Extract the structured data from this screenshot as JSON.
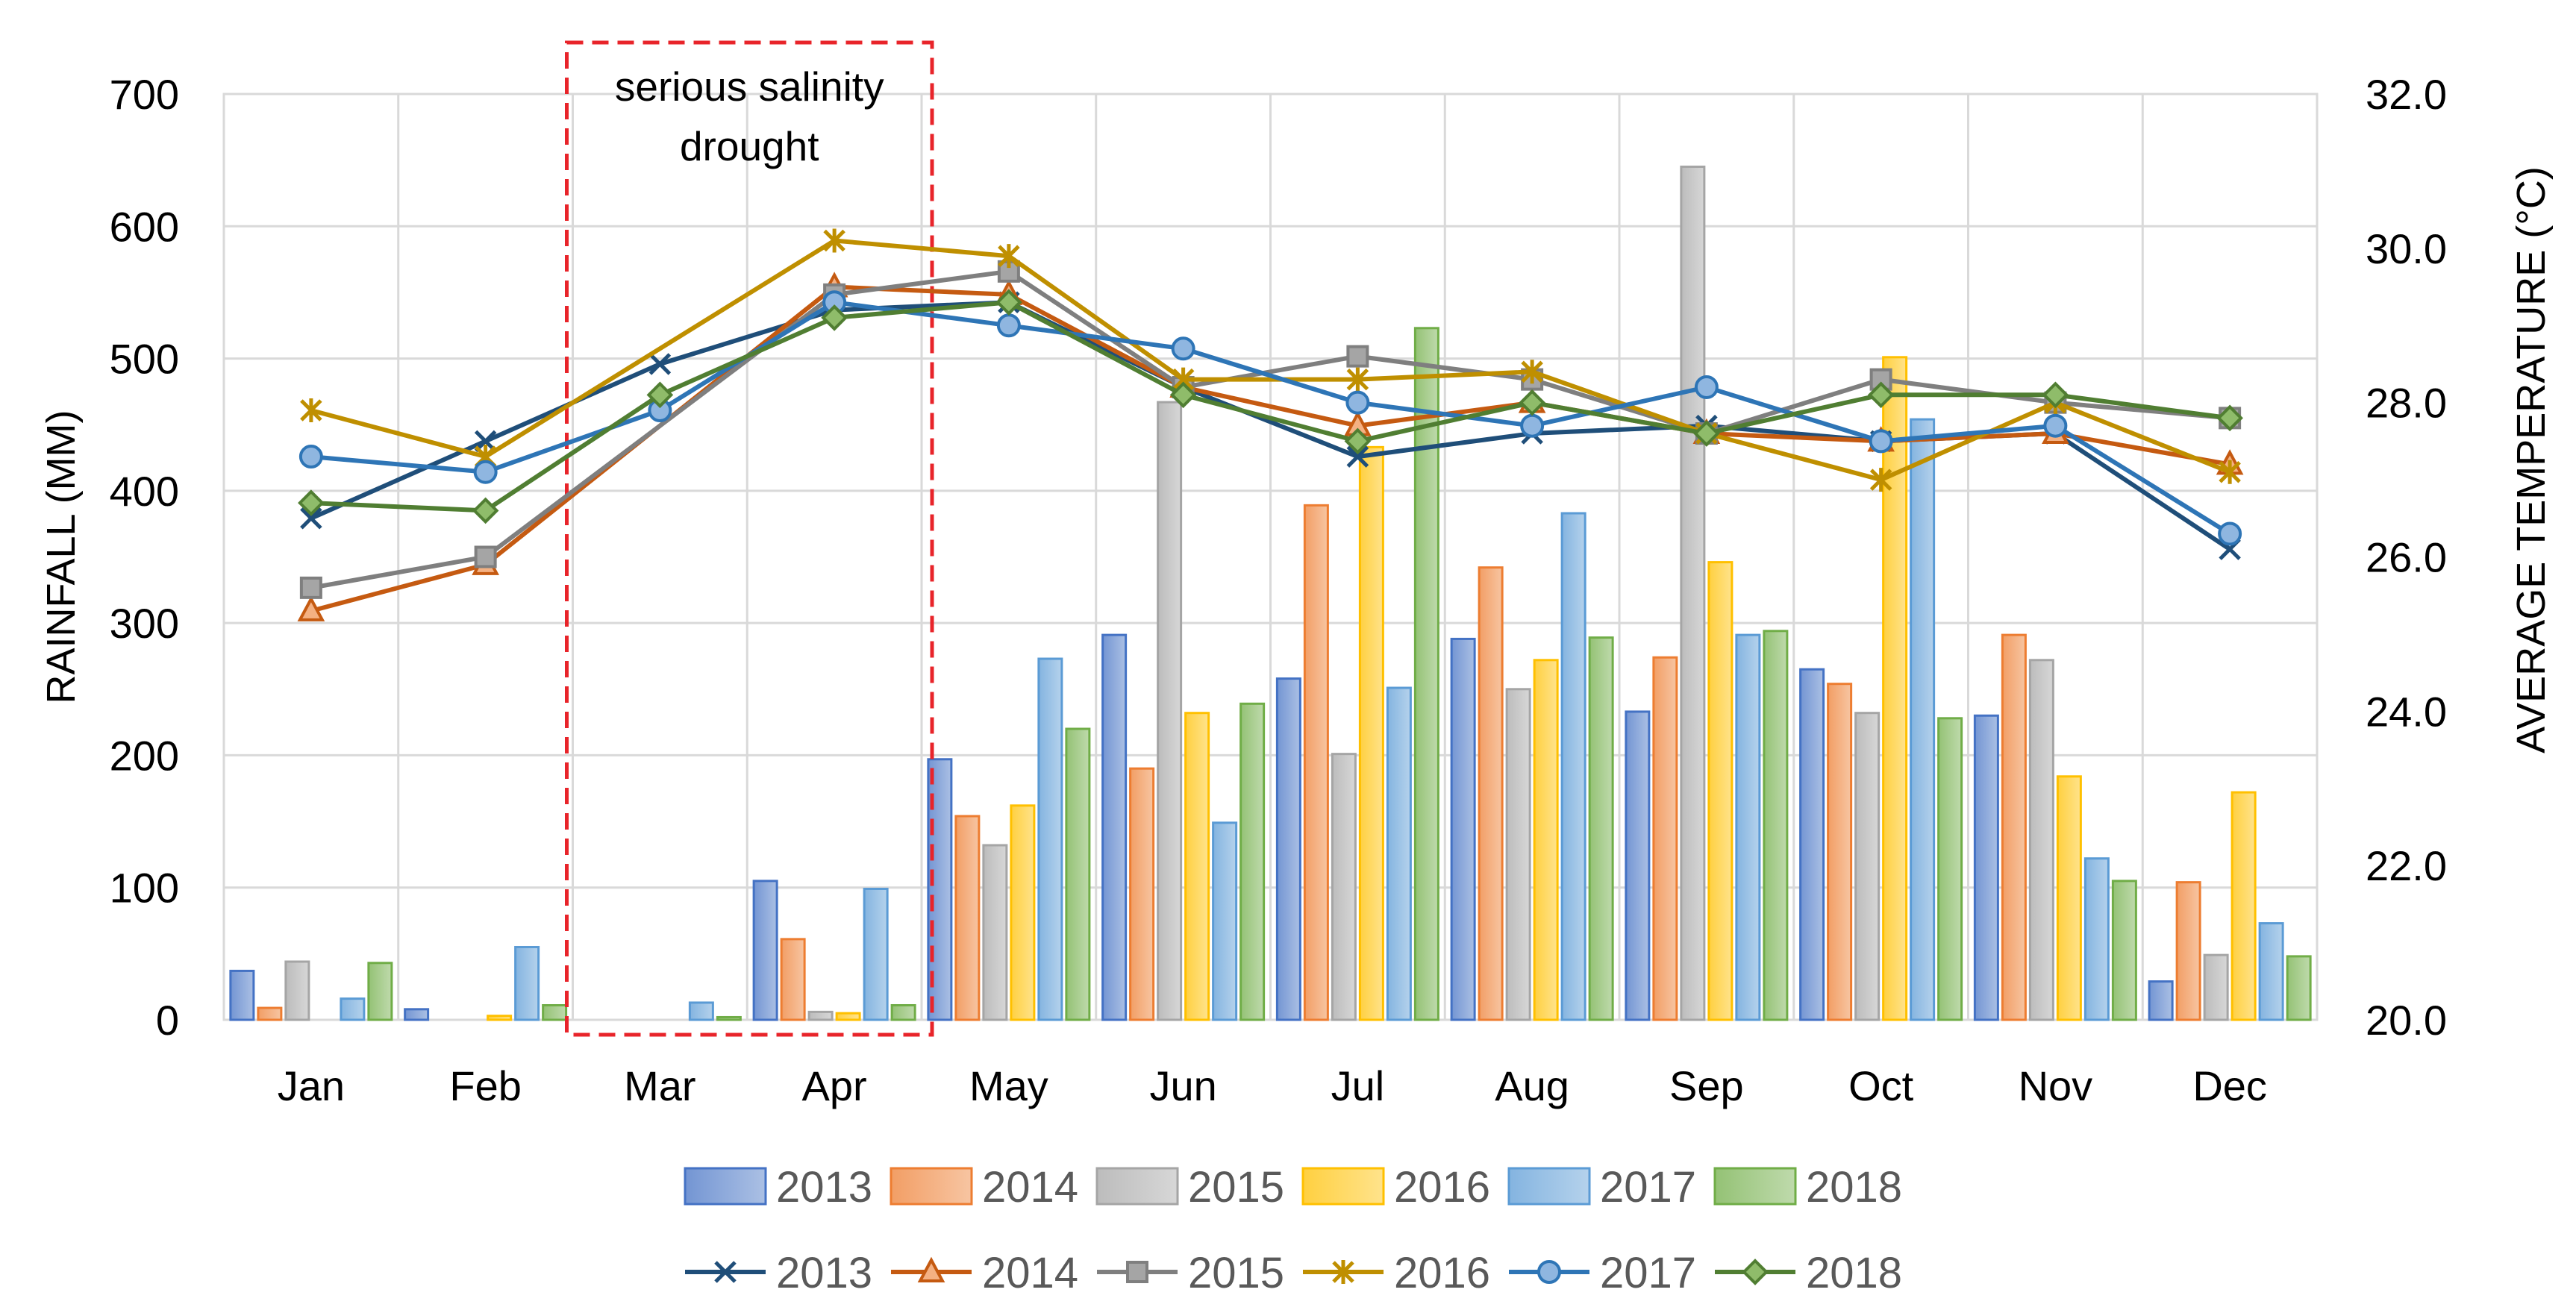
{
  "chart_data": {
    "type": "bar+line",
    "categories": [
      "Jan",
      "Feb",
      "Mar",
      "Apr",
      "May",
      "Jun",
      "Jul",
      "Aug",
      "Sep",
      "Oct",
      "Nov",
      "Dec"
    ],
    "left_axis": {
      "label": "RAINFALL (MM)",
      "range": [
        0,
        700
      ],
      "ticks": [
        "0",
        "100",
        "200",
        "300",
        "400",
        "500",
        "600",
        "700"
      ]
    },
    "right_axis": {
      "label": "AVERAGE TEMPERATURE (°C)",
      "range": [
        20,
        32
      ],
      "ticks": [
        "20.0",
        "22.0",
        "24.0",
        "26.0",
        "28.0",
        "30.0",
        "32.0"
      ]
    },
    "annotation": {
      "lines": [
        "serious salinity",
        "drought"
      ],
      "span": [
        "Mar",
        "Apr"
      ]
    },
    "grid": true,
    "legend_position": "bottom",
    "rainfall_series": [
      {
        "name": "2013",
        "color": "#4472C4",
        "values": [
          37,
          8,
          0,
          105,
          197,
          291,
          258,
          288,
          233,
          265,
          230,
          29
        ]
      },
      {
        "name": "2014",
        "color": "#ED7D31",
        "values": [
          9,
          0,
          0,
          61,
          154,
          190,
          389,
          342,
          274,
          254,
          291,
          104
        ]
      },
      {
        "name": "2015",
        "color": "#A5A5A5",
        "values": [
          44,
          0,
          0,
          6,
          132,
          467,
          201,
          250,
          645,
          232,
          272,
          49
        ]
      },
      {
        "name": "2016",
        "color": "#FFC000",
        "values": [
          0,
          3,
          0,
          5,
          162,
          232,
          433,
          272,
          346,
          501,
          184,
          172
        ]
      },
      {
        "name": "2017",
        "color": "#5B9BD5",
        "values": [
          16,
          55,
          13,
          99,
          273,
          149,
          251,
          383,
          291,
          454,
          122,
          73
        ]
      },
      {
        "name": "2018",
        "color": "#70AD47",
        "values": [
          43,
          11,
          2,
          11,
          220,
          239,
          523,
          289,
          294,
          228,
          105,
          48
        ]
      }
    ],
    "temperature_series": [
      {
        "name": "2013",
        "color": "#1F4E79",
        "marker": "x",
        "values": [
          26.5,
          27.5,
          28.5,
          29.2,
          29.3,
          28.2,
          27.3,
          27.6,
          27.7,
          27.5,
          27.6,
          26.1
        ]
      },
      {
        "name": "2014",
        "color": "#C55A11",
        "marker": "triangle",
        "values": [
          25.3,
          25.9,
          null,
          29.5,
          29.4,
          28.2,
          27.7,
          28.0,
          27.6,
          27.5,
          27.6,
          27.2
        ]
      },
      {
        "name": "2015",
        "color": "#7F7F7F",
        "marker": "square",
        "values": [
          25.6,
          26.0,
          null,
          29.4,
          29.7,
          28.2,
          28.6,
          28.3,
          27.6,
          28.3,
          28.0,
          27.8
        ]
      },
      {
        "name": "2016",
        "color": "#BF8F00",
        "marker": "asterisk",
        "values": [
          27.9,
          27.3,
          null,
          30.1,
          29.9,
          28.3,
          28.3,
          28.4,
          27.6,
          27.0,
          28.0,
          27.1
        ]
      },
      {
        "name": "2017",
        "color": "#2E75B6",
        "marker": "circle",
        "values": [
          27.3,
          27.1,
          27.9,
          29.3,
          29.0,
          28.7,
          28.0,
          27.7,
          28.2,
          27.5,
          27.7,
          26.3
        ]
      },
      {
        "name": "2018",
        "color": "#507E32",
        "marker": "diamond",
        "values": [
          26.7,
          26.6,
          28.1,
          29.1,
          29.3,
          28.1,
          27.5,
          28.0,
          27.6,
          28.1,
          28.1,
          27.8
        ]
      }
    ]
  }
}
